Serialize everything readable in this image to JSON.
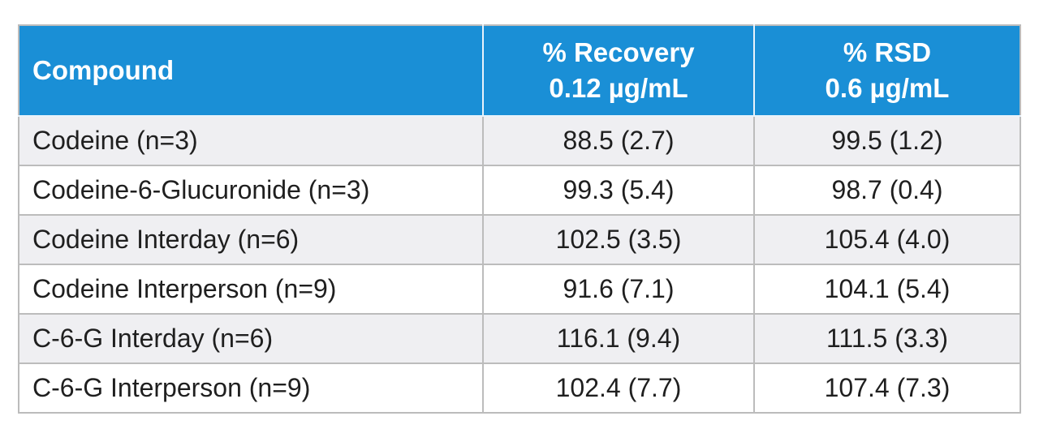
{
  "table": {
    "headers": {
      "col1": "Compound",
      "col2_line1": "% Recovery",
      "col2_line2": "0.12 µg/mL",
      "col3_line1": "% RSD",
      "col3_line2": "0.6 µg/mL"
    },
    "header_color": "#1a8fd6",
    "rows": [
      {
        "compound": "Codeine (n=3)",
        "recovery": "88.5 (2.7)",
        "rsd": "99.5 (1.2)"
      },
      {
        "compound": "Codeine-6-Glucuronide (n=3)",
        "recovery": "99.3 (5.4)",
        "rsd": "98.7 (0.4)"
      },
      {
        "compound": "Codeine Interday (n=6)",
        "recovery": "102.5 (3.5)",
        "rsd": "105.4 (4.0)"
      },
      {
        "compound": "Codeine Interperson (n=9)",
        "recovery": "91.6 (7.1)",
        "rsd": "104.1 (5.4)"
      },
      {
        "compound": "C-6-G Interday (n=6)",
        "recovery": "116.1 (9.4)",
        "rsd": "111.5 (3.3)"
      },
      {
        "compound": "C-6-G Interperson (n=9)",
        "recovery": "102.4 (7.7)",
        "rsd": "107.4 (7.3)"
      }
    ]
  }
}
